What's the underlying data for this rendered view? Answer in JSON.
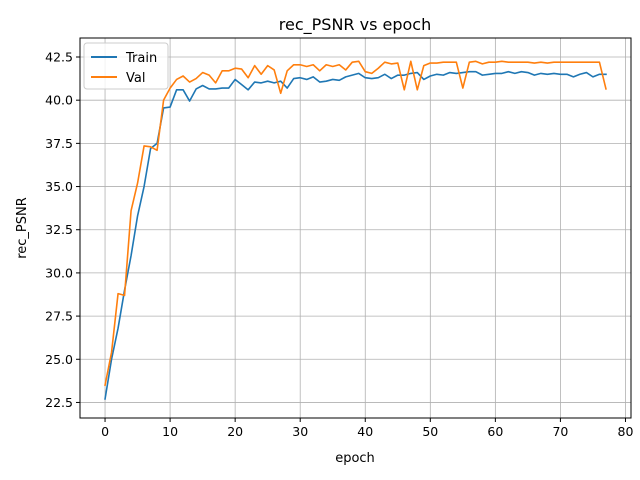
{
  "chart_data": {
    "type": "line",
    "title": "rec_PSNR vs epoch",
    "xlabel": "epoch",
    "ylabel": "rec_PSNR",
    "xlim": [
      -3.85,
      80.85
    ],
    "ylim": [
      21.6,
      43.6
    ],
    "xticks": [
      0,
      10,
      20,
      30,
      40,
      50,
      60,
      70,
      80
    ],
    "yticks": [
      22.5,
      25.0,
      27.5,
      30.0,
      32.5,
      35.0,
      37.5,
      40.0,
      42.5
    ],
    "grid": true,
    "legend_position": "upper-left",
    "x": [
      0,
      1,
      2,
      3,
      4,
      5,
      6,
      7,
      8,
      9,
      10,
      11,
      12,
      13,
      14,
      15,
      16,
      17,
      18,
      19,
      20,
      21,
      22,
      23,
      24,
      25,
      26,
      27,
      28,
      29,
      30,
      31,
      32,
      33,
      34,
      35,
      36,
      37,
      38,
      39,
      40,
      41,
      42,
      43,
      44,
      45,
      46,
      47,
      48,
      49,
      50,
      51,
      52,
      53,
      54,
      55,
      56,
      57,
      58,
      59,
      60,
      61,
      62,
      63,
      64,
      65,
      66,
      67,
      68,
      69,
      70,
      71,
      72,
      73,
      74,
      75,
      76,
      77
    ],
    "series": [
      {
        "name": "Train",
        "color": "#1f77b4",
        "values": [
          22.7,
          25.0,
          26.8,
          29.0,
          31.0,
          33.3,
          35.0,
          37.2,
          37.5,
          39.55,
          39.6,
          40.6,
          40.6,
          39.95,
          40.65,
          40.85,
          40.65,
          40.65,
          40.7,
          40.7,
          41.2,
          40.9,
          40.6,
          41.05,
          41.0,
          41.1,
          41.0,
          41.1,
          40.7,
          41.25,
          41.3,
          41.2,
          41.35,
          41.05,
          41.1,
          41.2,
          41.15,
          41.35,
          41.45,
          41.55,
          41.3,
          41.25,
          41.3,
          41.5,
          41.25,
          41.45,
          41.45,
          41.55,
          41.6,
          41.2,
          41.4,
          41.5,
          41.45,
          41.6,
          41.55,
          41.6,
          41.65,
          41.65,
          41.45,
          41.5,
          41.55,
          41.55,
          41.65,
          41.55,
          41.65,
          41.6,
          41.45,
          41.55,
          41.5,
          41.55,
          41.5,
          41.5,
          41.35,
          41.5,
          41.6,
          41.35,
          41.5,
          41.5
        ]
      },
      {
        "name": "Val",
        "color": "#ff7f0e",
        "values": [
          23.5,
          25.4,
          28.8,
          28.7,
          33.6,
          35.2,
          37.35,
          37.3,
          37.1,
          40.0,
          40.7,
          41.2,
          41.4,
          41.05,
          41.25,
          41.6,
          41.45,
          41.0,
          41.7,
          41.7,
          41.85,
          41.8,
          41.3,
          42.0,
          41.5,
          42.0,
          41.75,
          40.4,
          41.7,
          42.05,
          42.05,
          41.95,
          42.05,
          41.7,
          42.05,
          41.95,
          42.05,
          41.75,
          42.2,
          42.25,
          41.65,
          41.55,
          41.85,
          42.2,
          42.1,
          42.15,
          40.6,
          42.25,
          40.6,
          42.0,
          42.15,
          42.15,
          42.2,
          42.2,
          42.2,
          40.7,
          42.2,
          42.25,
          42.1,
          42.2,
          42.2,
          42.25,
          42.2,
          42.2,
          42.2,
          42.2,
          42.15,
          42.2,
          42.15,
          42.2,
          42.2,
          42.2,
          42.2,
          42.2,
          42.2,
          42.2,
          42.2,
          40.65
        ]
      }
    ]
  }
}
